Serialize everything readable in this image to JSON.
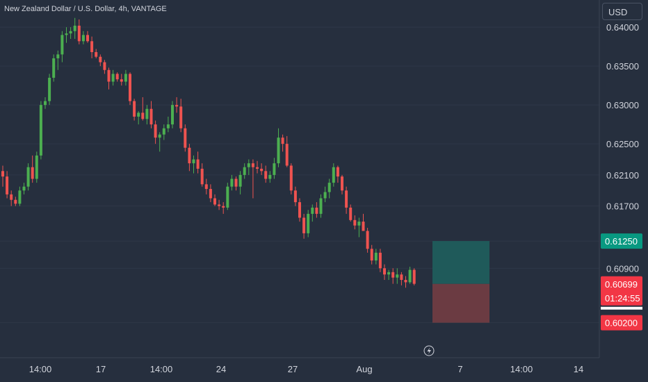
{
  "header": {
    "symbol_title": "New Zealand Dollar / U.S. Dollar, 4h, VANTAGE",
    "currency_button": "USD"
  },
  "colors": {
    "background": "#262f3e",
    "up_candle": "#26a69a",
    "up_candle_bright": "#4caf50",
    "down_candle": "#ef5350",
    "profit_zone": "#1f5a5a",
    "loss_zone": "#6b3b42",
    "target_tag": "#089981",
    "price_tag": "#f23645",
    "grid": "#2f3848"
  },
  "price_scale": {
    "ticks": [
      "0.64000",
      "0.63500",
      "0.63000",
      "0.62500",
      "0.62100",
      "0.61700",
      "0.61250",
      "0.60900",
      "0.60200"
    ],
    "target_label": "0.61250",
    "current_price_label": "0.60699",
    "countdown_label": "01:24:55",
    "stop_label": "0.60200"
  },
  "time_scale": {
    "ticks": [
      "14:00",
      "17",
      "14:00",
      "24",
      "27",
      "Aug",
      "7",
      "14:00",
      "14"
    ]
  },
  "chart_data": {
    "type": "candlestick",
    "title": "New Zealand Dollar / U.S. Dollar, 4h, VANTAGE",
    "y_unit": "USD",
    "ylim": [
      0.5975,
      0.6435
    ],
    "candles": [
      [
        0.6215,
        0.6222,
        0.6195,
        0.6208
      ],
      [
        0.6208,
        0.6215,
        0.618,
        0.6185
      ],
      [
        0.6185,
        0.619,
        0.617,
        0.6178
      ],
      [
        0.6178,
        0.6182,
        0.617,
        0.6173
      ],
      [
        0.6173,
        0.6195,
        0.617,
        0.619
      ],
      [
        0.619,
        0.62,
        0.6185,
        0.6195
      ],
      [
        0.6195,
        0.6225,
        0.619,
        0.622
      ],
      [
        0.622,
        0.6235,
        0.62,
        0.6205
      ],
      [
        0.6205,
        0.624,
        0.62,
        0.6235
      ],
      [
        0.6235,
        0.6305,
        0.623,
        0.63
      ],
      [
        0.63,
        0.631,
        0.6295,
        0.6305
      ],
      [
        0.6305,
        0.634,
        0.63,
        0.6335
      ],
      [
        0.6335,
        0.6365,
        0.633,
        0.636
      ],
      [
        0.636,
        0.637,
        0.6345,
        0.6365
      ],
      [
        0.6365,
        0.6395,
        0.6355,
        0.639
      ],
      [
        0.639,
        0.64,
        0.638,
        0.6392
      ],
      [
        0.6392,
        0.64,
        0.6385,
        0.6395
      ],
      [
        0.6395,
        0.6412,
        0.6385,
        0.6402
      ],
      [
        0.6402,
        0.641,
        0.6378,
        0.6382
      ],
      [
        0.6382,
        0.6395,
        0.6378,
        0.639
      ],
      [
        0.639,
        0.6395,
        0.638,
        0.6382
      ],
      [
        0.6382,
        0.6388,
        0.636,
        0.6368
      ],
      [
        0.6368,
        0.6372,
        0.636,
        0.6362
      ],
      [
        0.6362,
        0.6365,
        0.635,
        0.6355
      ],
      [
        0.6355,
        0.6358,
        0.634,
        0.6345
      ],
      [
        0.6345,
        0.6348,
        0.632,
        0.633
      ],
      [
        0.633,
        0.6345,
        0.6325,
        0.634
      ],
      [
        0.634,
        0.6342,
        0.633,
        0.6333
      ],
      [
        0.6333,
        0.634,
        0.6325,
        0.633
      ],
      [
        0.633,
        0.6345,
        0.6325,
        0.634
      ],
      [
        0.634,
        0.6342,
        0.63,
        0.6305
      ],
      [
        0.6305,
        0.6308,
        0.628,
        0.6285
      ],
      [
        0.6285,
        0.6292,
        0.6275,
        0.629
      ],
      [
        0.629,
        0.631,
        0.628,
        0.6282
      ],
      [
        0.6282,
        0.63,
        0.6275,
        0.6295
      ],
      [
        0.6295,
        0.6305,
        0.627,
        0.6275
      ],
      [
        0.6275,
        0.628,
        0.625,
        0.6258
      ],
      [
        0.6258,
        0.6265,
        0.624,
        0.6262
      ],
      [
        0.6262,
        0.6275,
        0.6255,
        0.627
      ],
      [
        0.627,
        0.6285,
        0.6265,
        0.6275
      ],
      [
        0.6275,
        0.6305,
        0.627,
        0.63
      ],
      [
        0.63,
        0.631,
        0.629,
        0.6298
      ],
      [
        0.6298,
        0.6308,
        0.6265,
        0.627
      ],
      [
        0.627,
        0.6275,
        0.624,
        0.6245
      ],
      [
        0.6245,
        0.625,
        0.6215,
        0.6225
      ],
      [
        0.6225,
        0.6235,
        0.6212,
        0.623
      ],
      [
        0.623,
        0.624,
        0.6212,
        0.6218
      ],
      [
        0.6218,
        0.6225,
        0.6195,
        0.6198
      ],
      [
        0.6198,
        0.6205,
        0.6185,
        0.6192
      ],
      [
        0.6192,
        0.6198,
        0.6175,
        0.618
      ],
      [
        0.618,
        0.6185,
        0.617,
        0.6172
      ],
      [
        0.6172,
        0.6178,
        0.6165,
        0.617
      ],
      [
        0.617,
        0.6175,
        0.616,
        0.6168
      ],
      [
        0.6168,
        0.62,
        0.6165,
        0.6195
      ],
      [
        0.6195,
        0.621,
        0.619,
        0.6205
      ],
      [
        0.6205,
        0.6208,
        0.619,
        0.6195
      ],
      [
        0.6195,
        0.6215,
        0.6185,
        0.621
      ],
      [
        0.621,
        0.6225,
        0.6205,
        0.622
      ],
      [
        0.622,
        0.623,
        0.621,
        0.6225
      ],
      [
        0.6225,
        0.623,
        0.618,
        0.622
      ],
      [
        0.622,
        0.6228,
        0.6212,
        0.6218
      ],
      [
        0.6218,
        0.6225,
        0.621,
        0.6215
      ],
      [
        0.6215,
        0.6222,
        0.62,
        0.6205
      ],
      [
        0.6205,
        0.6215,
        0.62,
        0.621
      ],
      [
        0.621,
        0.6232,
        0.6205,
        0.6225
      ],
      [
        0.6225,
        0.627,
        0.622,
        0.6258
      ],
      [
        0.6258,
        0.6262,
        0.624,
        0.625
      ],
      [
        0.625,
        0.626,
        0.622,
        0.6222
      ],
      [
        0.6222,
        0.6225,
        0.6185,
        0.619
      ],
      [
        0.619,
        0.6195,
        0.617,
        0.6175
      ],
      [
        0.6175,
        0.618,
        0.615,
        0.6155
      ],
      [
        0.6155,
        0.616,
        0.6128,
        0.6135
      ],
      [
        0.6135,
        0.6165,
        0.613,
        0.616
      ],
      [
        0.616,
        0.6172,
        0.615,
        0.6168
      ],
      [
        0.6168,
        0.6175,
        0.6155,
        0.616
      ],
      [
        0.616,
        0.6185,
        0.6155,
        0.618
      ],
      [
        0.618,
        0.6195,
        0.6175,
        0.6188
      ],
      [
        0.6188,
        0.6205,
        0.618,
        0.62
      ],
      [
        0.62,
        0.6225,
        0.6195,
        0.622
      ],
      [
        0.622,
        0.6222,
        0.62,
        0.6208
      ],
      [
        0.6208,
        0.621,
        0.6185,
        0.619
      ],
      [
        0.619,
        0.6195,
        0.616,
        0.6168
      ],
      [
        0.6168,
        0.6172,
        0.615,
        0.6152
      ],
      [
        0.6152,
        0.6158,
        0.614,
        0.6145
      ],
      [
        0.6145,
        0.6155,
        0.613,
        0.615
      ],
      [
        0.615,
        0.616,
        0.614,
        0.6138
      ],
      [
        0.6138,
        0.6142,
        0.611,
        0.6115
      ],
      [
        0.6115,
        0.612,
        0.6095,
        0.61
      ],
      [
        0.61,
        0.6115,
        0.6095,
        0.611
      ],
      [
        0.611,
        0.6115,
        0.6085,
        0.609
      ],
      [
        0.609,
        0.6095,
        0.6075,
        0.6082
      ],
      [
        0.6082,
        0.6088,
        0.6075,
        0.6085
      ],
      [
        0.6085,
        0.609,
        0.607,
        0.6078
      ],
      [
        0.6078,
        0.609,
        0.607,
        0.6082
      ],
      [
        0.6082,
        0.6085,
        0.6068,
        0.6075
      ],
      [
        0.6075,
        0.608,
        0.6065,
        0.6072
      ],
      [
        0.6072,
        0.6092,
        0.607,
        0.6088
      ],
      [
        0.6088,
        0.609,
        0.6068,
        0.607
      ]
    ],
    "position": {
      "entry": 0.60699,
      "target": 0.6125,
      "stop": 0.602
    }
  }
}
